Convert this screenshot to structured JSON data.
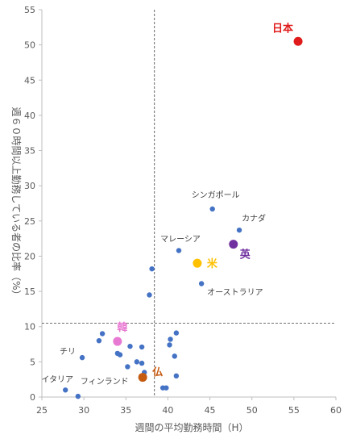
{
  "chart_data": {
    "type": "scatter",
    "xlabel": "週間の平均勤務時間（H）",
    "ylabel": "週６０時間以上勤務している者の比率（%）",
    "xlim": [
      25,
      60
    ],
    "ylim": [
      0,
      55
    ],
    "x_ticks": [
      "25",
      "30",
      "35",
      "40",
      "45",
      "50",
      "55",
      "60"
    ],
    "y_ticks": [
      "0",
      "5",
      "10",
      "15",
      "20",
      "25",
      "30",
      "35",
      "40",
      "45",
      "50",
      "55"
    ],
    "grid": false,
    "reference_lines": {
      "x": 38.4,
      "y": 10.5
    },
    "colors": {
      "default": "#4472C4",
      "japan": "#E01B1B",
      "uk": "#7030A0",
      "us": "#FFC000",
      "korea": "#E879D2",
      "france": "#C55A11",
      "axis": "#bfbfbf",
      "reference": "#404040"
    },
    "points": [
      {
        "x": 55.5,
        "y": 50.5,
        "label": "日本",
        "highlight": "japan"
      },
      {
        "x": 47.8,
        "y": 21.7,
        "label": "英",
        "highlight": "uk"
      },
      {
        "x": 43.5,
        "y": 19.0,
        "label": "米",
        "highlight": "us"
      },
      {
        "x": 34.0,
        "y": 7.9,
        "label": "韓",
        "highlight": "korea"
      },
      {
        "x": 37.0,
        "y": 2.8,
        "label": "仏",
        "highlight": "france"
      },
      {
        "x": 45.3,
        "y": 26.7,
        "label": "シンガポール"
      },
      {
        "x": 48.5,
        "y": 23.7,
        "label": "カナダ"
      },
      {
        "x": 41.3,
        "y": 20.8,
        "label": "マレーシア"
      },
      {
        "x": 44.0,
        "y": 16.1,
        "label": "オーストラリア"
      },
      {
        "x": 29.8,
        "y": 5.6,
        "label": "チリ"
      },
      {
        "x": 27.8,
        "y": 1.0,
        "label": "イタリア"
      },
      {
        "x": 29.3,
        "y": 0.1,
        "label": "フィンランド"
      },
      {
        "x": 38.1,
        "y": 18.2
      },
      {
        "x": 37.8,
        "y": 14.5
      },
      {
        "x": 32.2,
        "y": 9.0
      },
      {
        "x": 31.8,
        "y": 8.0
      },
      {
        "x": 34.0,
        "y": 6.2
      },
      {
        "x": 34.3,
        "y": 6.0
      },
      {
        "x": 35.5,
        "y": 7.2
      },
      {
        "x": 36.9,
        "y": 7.1
      },
      {
        "x": 36.3,
        "y": 5.0
      },
      {
        "x": 36.9,
        "y": 4.8
      },
      {
        "x": 35.2,
        "y": 4.3
      },
      {
        "x": 37.2,
        "y": 3.5
      },
      {
        "x": 39.4,
        "y": 1.3
      },
      {
        "x": 39.8,
        "y": 1.3
      },
      {
        "x": 40.3,
        "y": 8.2
      },
      {
        "x": 40.2,
        "y": 7.4
      },
      {
        "x": 41.0,
        "y": 9.1
      },
      {
        "x": 40.8,
        "y": 5.8
      },
      {
        "x": 41.0,
        "y": 3.0
      }
    ]
  }
}
